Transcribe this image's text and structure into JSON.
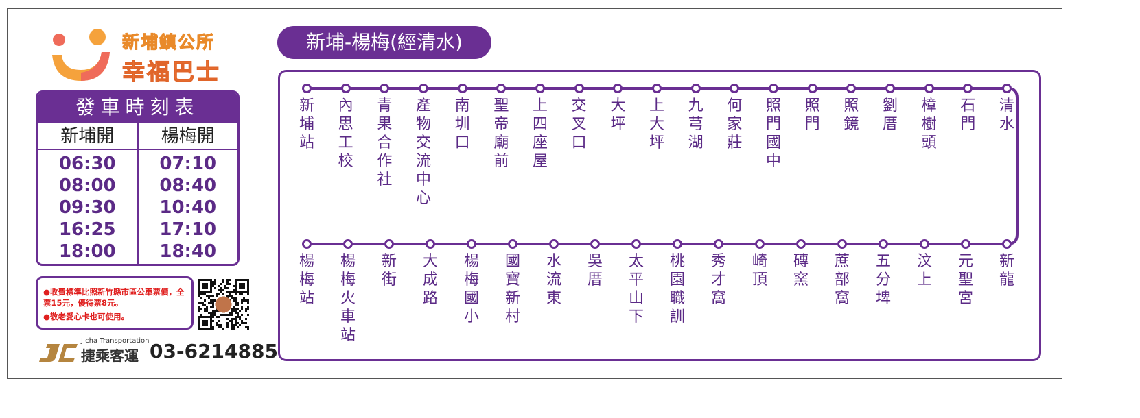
{
  "brand": {
    "line1": "新埔鎮公所",
    "line2": "幸福巴士"
  },
  "timetable": {
    "title": "發車時刻表",
    "col1": "新埔開",
    "col2": "楊梅開",
    "from_xinpu": [
      "06:30",
      "08:00",
      "09:30",
      "16:25",
      "18:00"
    ],
    "from_yangmei": [
      "07:10",
      "08:40",
      "10:40",
      "17:10",
      "18:40"
    ]
  },
  "notes": [
    "●收費標準比照新竹縣市區公車票價，全票15元，優待票8元。",
    "●敬老愛心卡也可使用。"
  ],
  "operator": {
    "logo": "JC",
    "english": "J cha Transportation",
    "name": "捷乘客運",
    "phone": "03-6214885"
  },
  "route": {
    "title": "新埔-楊梅(經清水)",
    "top_stops": [
      "新埔站",
      "內思工校",
      "青果合作社",
      "產物交流中心",
      "南圳口",
      "聖帝廟前",
      "上四座屋",
      "交叉口",
      "大坪",
      "上大坪",
      "九芎湖",
      "何家莊",
      "照門國中",
      "照門",
      "照鏡",
      "劉厝",
      "樟樹頭",
      "石門",
      "清水"
    ],
    "bottom_stops": [
      "楊梅站",
      "楊梅火車站",
      "新街",
      "大成路",
      "楊梅國小",
      "國寶新村",
      "水流東",
      "吳厝",
      "太平山下",
      "桃園職訓",
      "秀才窩",
      "崎頂",
      "磚窯",
      "蔗部窩",
      "五分埤",
      "汶上",
      "元聖宮",
      "新龍"
    ]
  },
  "colors": {
    "accent": "#6a2f93",
    "note": "#e0201f",
    "brand_orange": "#f5a23c"
  }
}
